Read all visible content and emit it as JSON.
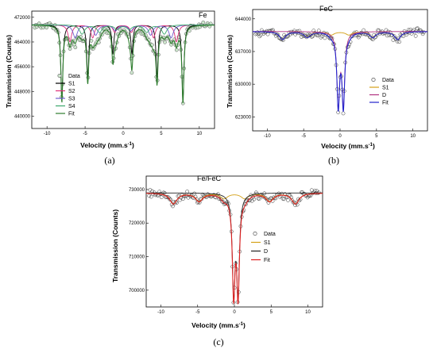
{
  "chart_data": [
    {
      "id": "a",
      "panel_label": "(a)",
      "type": "scatter",
      "title": "Fe",
      "xlabel": "Velocity (mm.s",
      "xlabel_sup": "-1",
      "xlabel_close": ")",
      "ylabel": "Transmission (Counts)",
      "xlim": [
        -12,
        12
      ],
      "ylim": [
        436000,
        474000
      ],
      "xticks": [
        -10,
        -5,
        0,
        5,
        10
      ],
      "yticks": [
        440000,
        448000,
        456000,
        464000,
        472000
      ],
      "baseline": 469600,
      "data_color": "#555555",
      "data_fill": "#cfe8cf",
      "series": [
        {
          "name": "Data",
          "kind": "markers"
        },
        {
          "name": "S1",
          "color": "#000000",
          "kind": "sextet",
          "center": -0.05,
          "lines": [
            -8.0,
            -4.6,
            -1.3,
            1.2,
            4.5,
            7.9
          ],
          "depths": [
            24500,
            17000,
            9500,
            9500,
            17000,
            24500
          ],
          "width": 0.16
        },
        {
          "name": "S2",
          "color": "#e0307a",
          "kind": "sextet",
          "center": 0.0,
          "lines": [
            -7.0,
            -4.0,
            -1.1,
            1.1,
            4.0,
            7.0
          ],
          "depths": [
            5500,
            4200,
            2400,
            2400,
            4200,
            5500
          ],
          "width": 0.28
        },
        {
          "name": "S3",
          "color": "#7060d0",
          "kind": "sextet",
          "center": 0.0,
          "lines": [
            -6.3,
            -3.6,
            -1.0,
            1.0,
            3.6,
            6.3
          ],
          "depths": [
            4200,
            3300,
            1900,
            1900,
            3300,
            4200
          ],
          "width": 0.35
        },
        {
          "name": "S4",
          "color": "#3aa86b",
          "kind": "sextet",
          "center": 0.0,
          "lines": [
            -5.4,
            -3.1,
            -0.8,
            0.8,
            3.1,
            5.4
          ],
          "depths": [
            3000,
            2400,
            1400,
            1400,
            2400,
            3000
          ],
          "width": 0.4
        },
        {
          "name": "Fit",
          "color": "#2e7d2e",
          "kind": "sum"
        }
      ]
    },
    {
      "id": "b",
      "panel_label": "(b)",
      "type": "scatter",
      "title": "FeC",
      "xlabel": "Velocity (mm.s",
      "xlabel_sup": "-1",
      "xlabel_close": ")",
      "ylabel": "Transmission (Counts)",
      "xlim": [
        -12,
        12
      ],
      "ylim": [
        620000,
        646000
      ],
      "xticks": [
        -10,
        -5,
        0,
        5,
        10
      ],
      "yticks": [
        623000,
        630000,
        637000,
        644000
      ],
      "baseline": 641300,
      "data_color": "#333333",
      "data_fill": "none",
      "series": [
        {
          "name": "Data",
          "kind": "markers"
        },
        {
          "name": "S1",
          "color": "#d4a017",
          "kind": "sextet",
          "center": 0.0,
          "lines": [
            -7.9,
            -4.5,
            -1.2,
            1.2,
            4.5,
            7.9
          ],
          "depths": [
            1700,
            1200,
            700,
            700,
            1200,
            1700
          ],
          "width": 0.5
        },
        {
          "name": "D",
          "color": "#b03080",
          "kind": "doublet",
          "center": 0.1,
          "lines": [
            -0.35,
            0.35
          ],
          "depths": [
            15500,
            15500
          ],
          "width": 0.22
        },
        {
          "name": "Fit",
          "color": "#2222cc",
          "kind": "sum"
        }
      ]
    },
    {
      "id": "c",
      "panel_label": "(c)",
      "type": "scatter",
      "title": "Fe/FeC",
      "xlabel": "Velocity (mm.s",
      "xlabel_sup": "-1",
      "xlabel_close": ")",
      "ylabel": "Transmission (Counts)",
      "xlim": [
        -12,
        12
      ],
      "ylim": [
        695000,
        734000
      ],
      "xticks": [
        -10,
        -5,
        0,
        5,
        10
      ],
      "yticks": [
        700000,
        710000,
        720000,
        730000
      ],
      "baseline": 729000,
      "data_color": "#333333",
      "data_fill": "none",
      "series": [
        {
          "name": "Data",
          "kind": "markers"
        },
        {
          "name": "S1",
          "color": "#d4a017",
          "kind": "sextet",
          "center": 0.0,
          "lines": [
            -8.3,
            -4.8,
            -1.4,
            1.4,
            4.8,
            8.3
          ],
          "depths": [
            3200,
            2400,
            1600,
            1600,
            2400,
            3200
          ],
          "width": 0.6
        },
        {
          "name": "D",
          "color": "#222222",
          "kind": "doublet",
          "center": 0.2,
          "lines": [
            -0.3,
            0.3
          ],
          "depths": [
            29000,
            29000
          ],
          "width": 0.22
        },
        {
          "name": "Fit",
          "color": "#dd2020",
          "kind": "sum"
        }
      ]
    }
  ]
}
